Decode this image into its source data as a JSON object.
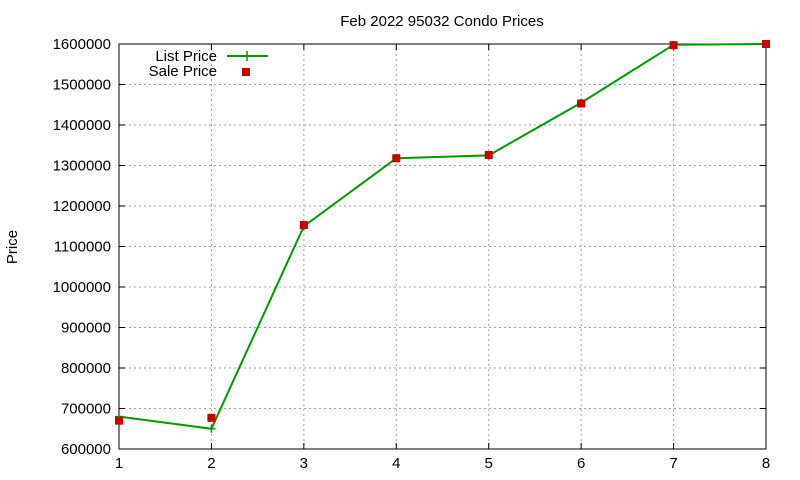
{
  "chart_data": {
    "type": "line",
    "title": "Feb 2022 95032 Condo Prices",
    "xlabel": "",
    "ylabel": "Price",
    "x": [
      1,
      2,
      3,
      4,
      5,
      6,
      7,
      8
    ],
    "xlim": [
      1,
      8
    ],
    "ylim": [
      600000,
      1600000
    ],
    "xticks": [
      1,
      2,
      3,
      4,
      5,
      6,
      7,
      8
    ],
    "yticks": [
      600000,
      700000,
      800000,
      900000,
      1000000,
      1100000,
      1200000,
      1300000,
      1400000,
      1500000,
      1600000
    ],
    "grid": true,
    "legend_position": "top-left",
    "series": [
      {
        "name": "List Price",
        "style": "line-with-plus-markers",
        "color": "#009900",
        "values": [
          680000,
          650000,
          1150000,
          1318000,
          1325000,
          1455000,
          1598000,
          1600000
        ]
      },
      {
        "name": "Sale Price",
        "style": "square-markers",
        "color": "#cc0000",
        "values": [
          670000,
          677000,
          1153000,
          1318000,
          1326000,
          1453000,
          1597000,
          1600000
        ]
      }
    ]
  }
}
